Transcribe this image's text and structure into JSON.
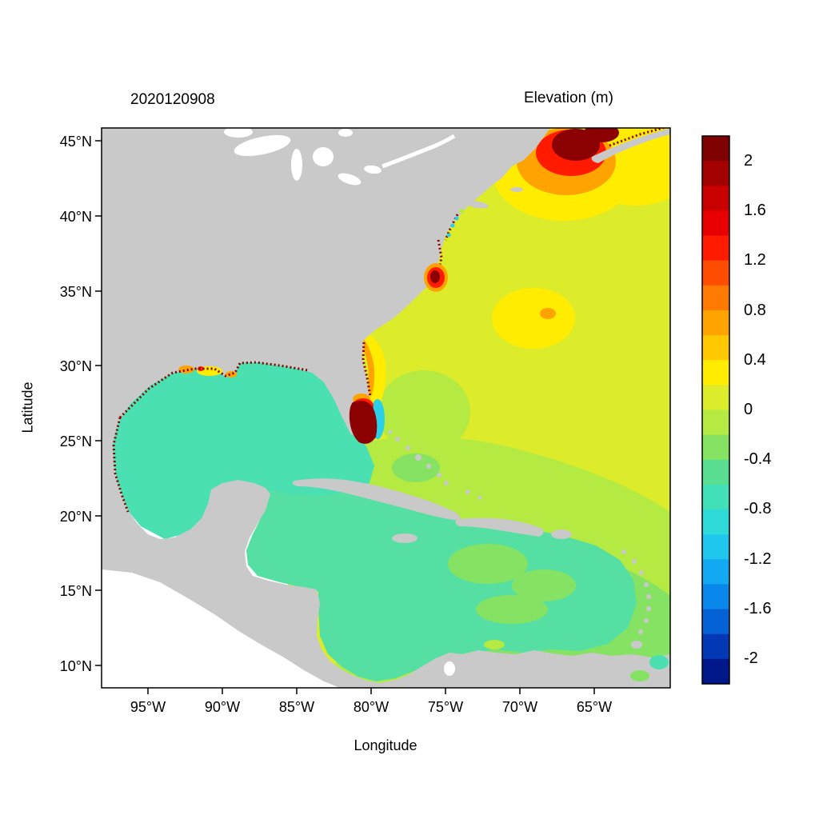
{
  "figure": {
    "left_title": "2020120908",
    "right_title": "Elevation (m)",
    "x_axis": {
      "label": "Longitude",
      "ticks": [
        "95°W",
        "90°W",
        "85°W",
        "80°W",
        "75°W",
        "70°W",
        "65°W"
      ]
    },
    "y_axis": {
      "label": "Latitude",
      "ticks": [
        "45°N",
        "40°N",
        "35°N",
        "30°N",
        "25°N",
        "20°N",
        "15°N",
        "10°N"
      ]
    },
    "colorbar": {
      "tick_labels": [
        "2",
        "1.6",
        "1.2",
        "0.8",
        "0.4",
        "0",
        "-0.4",
        "-0.8",
        "-1.2",
        "-1.6",
        "-2"
      ]
    }
  },
  "colors": {
    "background": "#ffffff",
    "frame": "#000000",
    "land": "#c9c9c9",
    "lake": "#ffffff",
    "no_data_ocean": "#ffffff",
    "ocean_atlantic": "#dcec2a",
    "ocean_green": "#b4ea42",
    "ocean_green_deep": "#86e263",
    "ocean_gulf": "#4ae0b2",
    "ocean_caribbean": "#55dfa2",
    "patch_yellow": "#ffec00",
    "patch_orange": "#ffa300",
    "patch_red": "#ff1a00",
    "patch_dark_red": "#8b0000",
    "patch_cyan": "#2bd0e8"
  },
  "chart_data": {
    "type": "heatmap",
    "title": "Elevation (m)",
    "timestamp_label": "2020120908",
    "xlabel": "Longitude",
    "ylabel": "Latitude",
    "x_ticks": [
      "95°W",
      "90°W",
      "85°W",
      "80°W",
      "75°W",
      "70°W",
      "65°W"
    ],
    "y_ticks": [
      "45°N",
      "40°N",
      "35°N",
      "30°N",
      "25°N",
      "20°N",
      "15°N",
      "10°N"
    ],
    "x_range_deg_west": [
      98,
      60
    ],
    "y_range_deg_north": [
      8.5,
      45.5
    ],
    "grid": false,
    "land_color": "#c9c9c9",
    "colorbar": {
      "units": "m",
      "orientation": "vertical-right",
      "min": -2.2,
      "max": 2.2,
      "step": 0.2,
      "tick_values": [
        2,
        1.6,
        1.2,
        0.8,
        0.4,
        0,
        -0.4,
        -0.8,
        -1.2,
        -1.6,
        -2
      ],
      "colors": [
        "#7f0000",
        "#a30000",
        "#c80000",
        "#e80000",
        "#ff1a00",
        "#ff4d00",
        "#ff7a00",
        "#ffa300",
        "#ffc800",
        "#ffec00",
        "#dcec2a",
        "#b4ea42",
        "#86e263",
        "#59dd90",
        "#41e0b8",
        "#2edbd9",
        "#1fc6ee",
        "#12a8f2",
        "#0a87ea",
        "#0461d6",
        "#0238b4",
        "#001889"
      ]
    },
    "regions": [
      {
        "area": "Gulf of Mexico",
        "elevation_m": -0.3
      },
      {
        "area": "Western Caribbean Sea",
        "elevation_m": -0.3
      },
      {
        "area": "Eastern Caribbean Sea",
        "elevation_m": -0.2
      },
      {
        "area": "Open western North Atlantic",
        "elevation_m": 0.3
      },
      {
        "area": "Mid-Atlantic yellow patch near 33N 68W",
        "elevation_m": 0.5
      },
      {
        "area": "Southeast US coastal band near 31N 80W",
        "elevation_m": 0.7
      },
      {
        "area": "Gulf of Maine / Bay of Fundy surge maximum",
        "elevation_m": 2.2
      },
      {
        "area": "South Florida coastal maximum near 26N 80W",
        "elevation_m": 2.2
      },
      {
        "area": "Cape Hatteras coastal spot near 36N 76W",
        "elevation_m": 1.6
      },
      {
        "area": "Louisiana shelf patches near 29N 91W",
        "elevation_m": 0.8
      },
      {
        "area": "Florida Strait cyan patch",
        "elevation_m": -0.7
      },
      {
        "area": "Land and undefined ocean",
        "elevation_m": null
      }
    ]
  }
}
